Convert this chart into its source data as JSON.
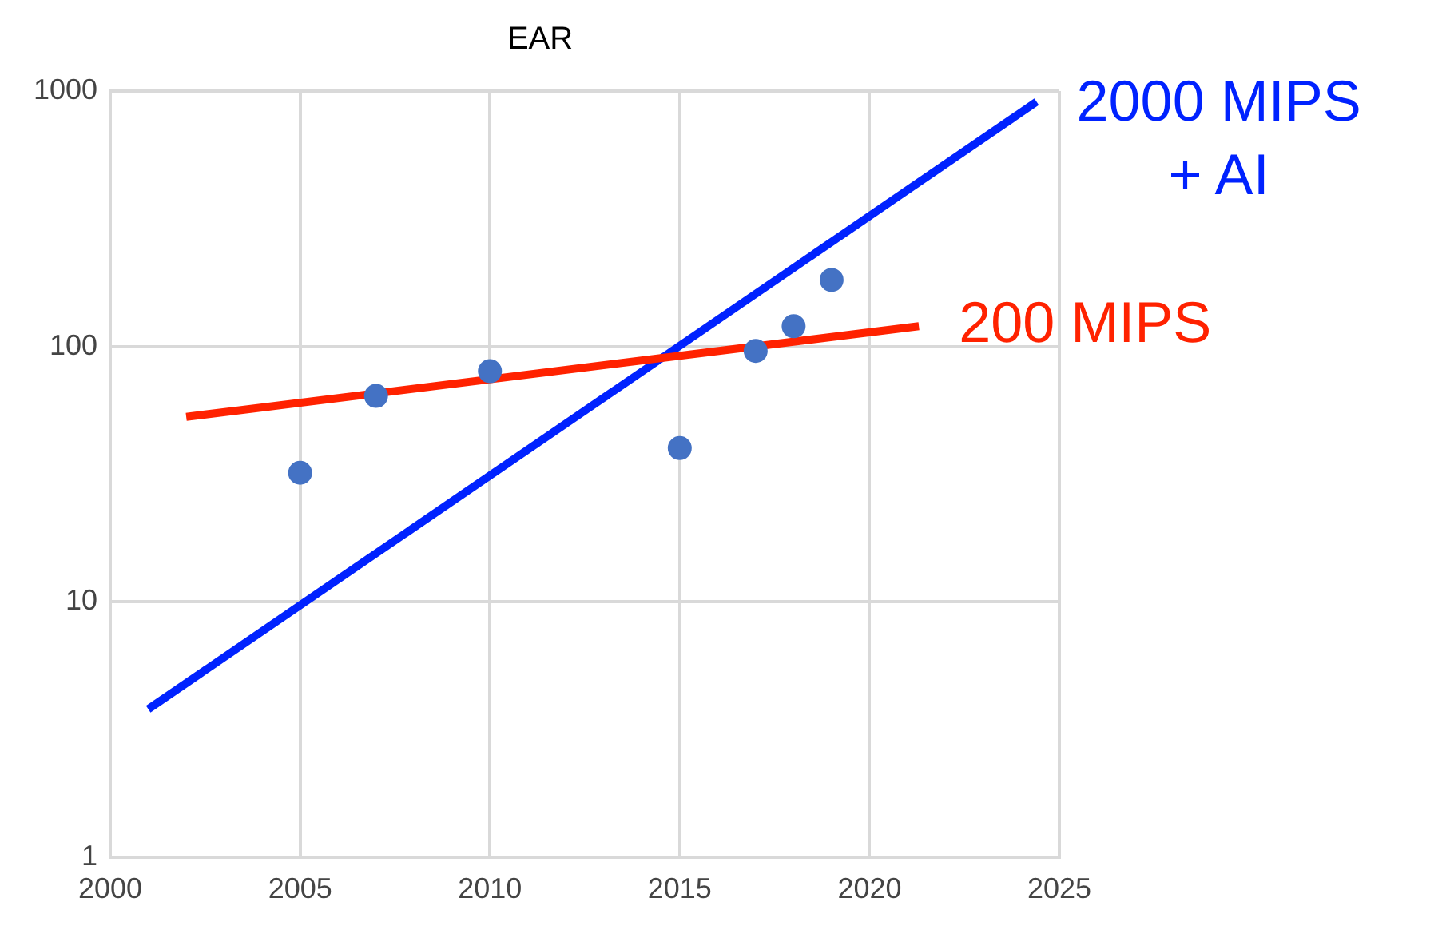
{
  "chart_data": {
    "type": "scatter",
    "title": "EAR",
    "xlim": [
      2000,
      2025
    ],
    "xticks": [
      2000,
      2005,
      2010,
      2015,
      2020,
      2025
    ],
    "ylim": [
      1,
      1000
    ],
    "yticks": [
      1,
      10,
      100,
      1000
    ],
    "log": "y",
    "grid": true,
    "legend": false,
    "marker": "circle",
    "series": [
      {
        "color": "#4472c4",
        "x": [
          2005,
          2007,
          2010,
          2015,
          2017,
          2018,
          2019
        ],
        "values": [
          32,
          64,
          80,
          40,
          96,
          120,
          182
        ]
      },
      {
        "type": "line",
        "name": "200 MIPS",
        "color": "#ff2200",
        "x": [
          2002,
          2021.3
        ],
        "values": [
          53,
          120
        ],
        "marker": "none"
      },
      {
        "type": "line",
        "name": "2000 MIPS + AI",
        "color": "#0022ff",
        "x": [
          2001,
          2024.4
        ],
        "values": [
          3.8,
          908
        ],
        "marker": "none"
      }
    ]
  }
}
